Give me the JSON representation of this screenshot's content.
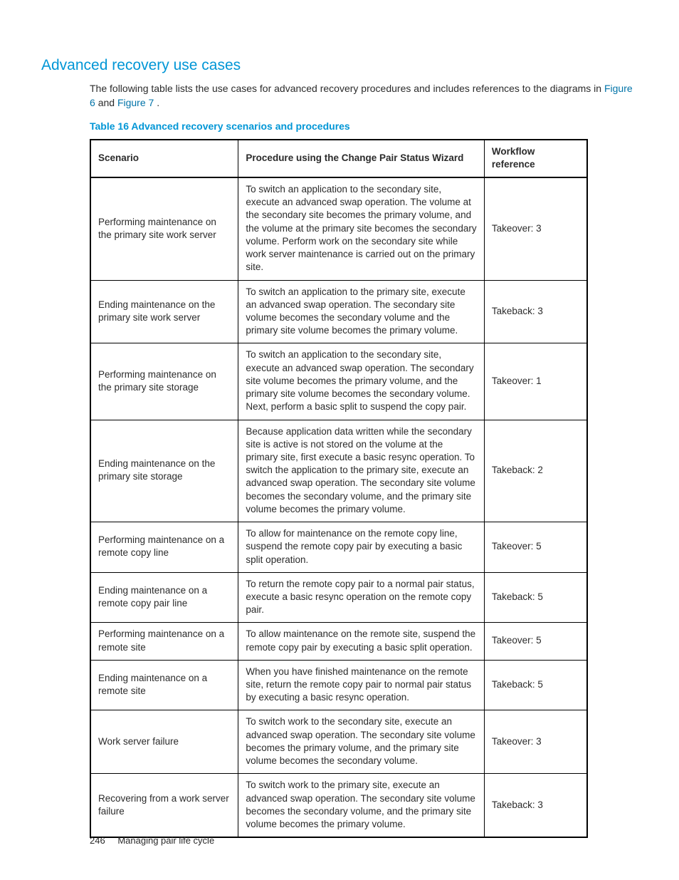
{
  "colors": {
    "title_color": "#0096d6",
    "caption_color": "#0096d6",
    "link_color": "#0073a8",
    "text_color": "#2b2b2b",
    "border_color": "#000000",
    "background": "#ffffff"
  },
  "heading": "Advanced recovery use cases",
  "intro": {
    "before": "The following table lists the use cases for advanced recovery procedures and includes references to the diagrams in ",
    "link1": "Figure 6",
    "mid": " and ",
    "link2": "Figure 7",
    "after": "."
  },
  "table_caption": "Table 16 Advanced recovery scenarios and procedures",
  "columns": [
    "Scenario",
    "Procedure using the Change Pair Status Wizard",
    "Workflow reference"
  ],
  "rows": [
    {
      "scenario": "Performing maintenance on the primary site work server",
      "procedure": "To switch an application to the secondary site, execute an advanced swap operation. The volume at the secondary site becomes the primary volume, and the volume at the primary site becomes the secondary volume. Perform work on the secondary site while work server maintenance is carried out on the primary site.",
      "workflow": "Takeover: 3"
    },
    {
      "scenario": "Ending maintenance on the primary site work server",
      "procedure": "To switch an application to the primary site, execute an advanced swap operation. The secondary site volume becomes the secondary volume and the primary site volume becomes the primary volume.",
      "workflow": "Takeback: 3"
    },
    {
      "scenario": "Performing maintenance on the primary site storage",
      "procedure": "To switch an application to the secondary site, execute an advanced swap operation. The secondary site volume becomes the primary volume, and the primary site volume becomes the secondary volume. Next, perform a basic split to suspend the copy pair.",
      "workflow": "Takeover: 1"
    },
    {
      "scenario": "Ending maintenance on the primary site storage",
      "procedure": "Because application data written while the secondary site is active is not stored on the volume at the primary site, first execute a basic resync operation. To switch the application to the primary site, execute an advanced swap operation. The secondary site volume becomes the secondary volume, and the primary site volume becomes the primary volume.",
      "workflow": "Takeback: 2"
    },
    {
      "scenario": "Performing maintenance on a remote copy line",
      "procedure": "To allow for maintenance on the remote copy line, suspend the remote copy pair by executing a basic split operation.",
      "workflow": "Takeover: 5"
    },
    {
      "scenario": "Ending maintenance on a remote copy pair line",
      "procedure": "To return the remote copy pair to a normal pair status, execute a basic resync operation on the remote copy pair.",
      "workflow": "Takeback: 5"
    },
    {
      "scenario": "Performing maintenance on a remote site",
      "procedure": "To allow maintenance on the remote site, suspend the remote copy pair by executing a basic split operation.",
      "workflow": "Takeover: 5"
    },
    {
      "scenario": "Ending maintenance on a remote site",
      "procedure": "When you have finished maintenance on the remote site, return the remote copy pair to normal pair status by executing a basic resync operation.",
      "workflow": "Takeback: 5"
    },
    {
      "scenario": "Work server failure",
      "procedure": "To switch work to the secondary site, execute an advanced swap operation. The secondary site volume becomes the primary volume, and the primary site volume becomes the secondary volume.",
      "workflow": "Takeover: 3"
    },
    {
      "scenario": "Recovering from a work server failure",
      "procedure": "To switch work to the primary site, execute an advanced swap operation. The secondary site volume becomes the secondary volume, and the primary site volume becomes the primary volume.",
      "workflow": "Takeback: 3"
    }
  ],
  "footer": {
    "page_number": "246",
    "section": "Managing pair life cycle"
  }
}
